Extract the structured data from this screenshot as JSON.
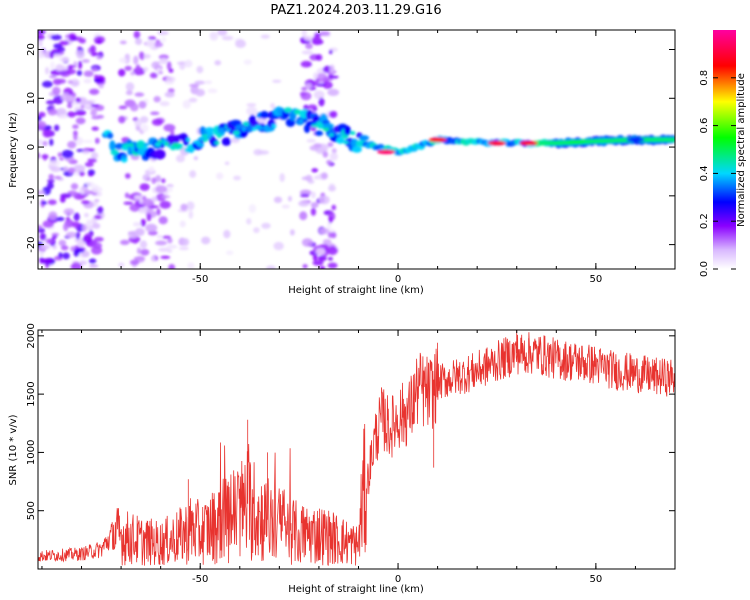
{
  "title": "PAZ1.2024.203.11.29.G16",
  "chart_data": [
    {
      "type": "heatmap",
      "xlabel": "Height of straight line (km)",
      "ylabel": "Frequency (Hz)",
      "xlim": [
        -91,
        70
      ],
      "ylim": [
        -25,
        24
      ],
      "x_ticks": [
        "-50",
        "0",
        "50"
      ],
      "x_tick_values": [
        -50,
        0,
        50
      ],
      "y_ticks": [
        "-20",
        "-10",
        "0",
        "10",
        "20"
      ],
      "y_tick_values": [
        -20,
        -10,
        0,
        10,
        20
      ],
      "colorbar": {
        "label": "Normalized spectral amplitude",
        "range": [
          0,
          1
        ],
        "ticks": [
          "0.0",
          "0.2",
          "0.4",
          "0.6",
          "0.8"
        ],
        "tick_values": [
          0.0,
          0.2,
          0.4,
          0.6,
          0.8
        ],
        "colors": [
          "#ffffff",
          "#d9b8ff",
          "#8a00ff",
          "#0000ff",
          "#00d7ff",
          "#00ff00",
          "#ffff00",
          "#ff0000",
          "#ff00a0"
        ]
      },
      "ridge": [
        {
          "x": -72,
          "y": -1
        },
        {
          "x": -65,
          "y": -0.5
        },
        {
          "x": -58,
          "y": 0
        },
        {
          "x": -50,
          "y": 1.5
        },
        {
          "x": -42,
          "y": 3
        },
        {
          "x": -35,
          "y": 5
        },
        {
          "x": -28,
          "y": 6.5
        },
        {
          "x": -22,
          "y": 5
        },
        {
          "x": -15,
          "y": 3
        },
        {
          "x": -10,
          "y": 1
        },
        {
          "x": -5,
          "y": 0
        },
        {
          "x": 0,
          "y": -1
        },
        {
          "x": 5,
          "y": 0
        },
        {
          "x": 10,
          "y": 1.5
        },
        {
          "x": 20,
          "y": 1
        },
        {
          "x": 30,
          "y": 0.8
        },
        {
          "x": 40,
          "y": 0.8
        },
        {
          "x": 50,
          "y": 1.2
        },
        {
          "x": 60,
          "y": 1.5
        },
        {
          "x": 70,
          "y": 1.5
        }
      ],
      "hotspots": [
        {
          "x": -3,
          "y": -1,
          "amplitude": 0.95
        },
        {
          "x": 10,
          "y": 1.5,
          "amplitude": 0.85
        },
        {
          "x": 25,
          "y": 0.8,
          "amplitude": 0.9
        },
        {
          "x": 33,
          "y": 0.8,
          "amplitude": 0.88
        },
        {
          "x": 45,
          "y": 1.0,
          "amplitude": 0.5
        },
        {
          "x": 60,
          "y": 1.5,
          "amplitude": 0.3
        }
      ]
    },
    {
      "type": "line",
      "xlabel": "Height of straight line (km)",
      "ylabel": "SNR (10 * v/v)",
      "xlim": [
        -91,
        70
      ],
      "ylim": [
        0,
        2050
      ],
      "x_ticks": [
        "-50",
        "0",
        "50"
      ],
      "x_tick_values": [
        -50,
        0,
        50
      ],
      "y_ticks": [
        "500",
        "1000",
        "1500",
        "2000"
      ],
      "y_tick_values": [
        500,
        1000,
        1500,
        2000
      ],
      "color": "#e8332f",
      "series": [
        {
          "x": [
            -91,
            -85,
            -80,
            -75,
            -72,
            -70,
            -65,
            -60,
            -55,
            -52,
            -50,
            -45,
            -40,
            -38,
            -35,
            -30,
            -25,
            -20,
            -15,
            -10,
            -9,
            -8,
            -6,
            -4,
            -2,
            0,
            3,
            5,
            8,
            10,
            15,
            20,
            25,
            30,
            35,
            40,
            45,
            50,
            55,
            60,
            65,
            70
          ],
          "y": [
            110,
            120,
            130,
            170,
            300,
            280,
            240,
            220,
            280,
            350,
            300,
            400,
            500,
            560,
            450,
            380,
            300,
            300,
            250,
            200,
            600,
            700,
            1100,
            1300,
            1200,
            1300,
            1350,
            1550,
            1500,
            1600,
            1650,
            1700,
            1780,
            1850,
            1850,
            1800,
            1780,
            1750,
            1700,
            1680,
            1650,
            1640
          ]
        }
      ],
      "spikes": [
        {
          "x": -38,
          "y": 1280
        },
        {
          "x": -33,
          "y": 1000
        },
        {
          "x": -53,
          "y": 770
        },
        {
          "x": 10,
          "y": 1940
        },
        {
          "x": 30,
          "y": 2050
        },
        {
          "x": 33,
          "y": 1980
        },
        {
          "x": 9,
          "y": 870
        }
      ]
    }
  ]
}
